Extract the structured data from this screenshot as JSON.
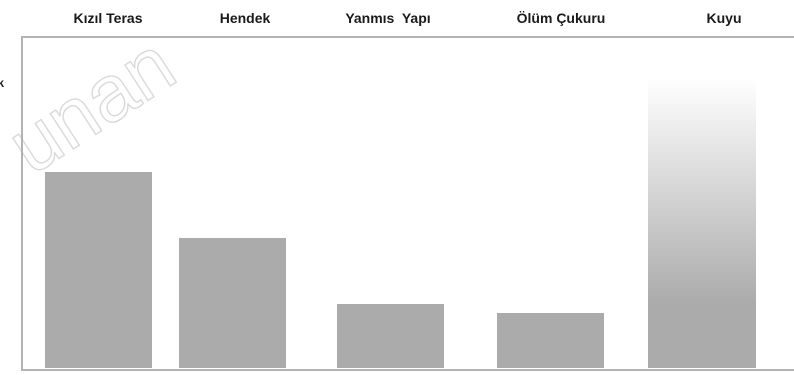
{
  "chart_data": {
    "type": "bar",
    "title": "",
    "xlabel": "",
    "ylabel": "ik",
    "categories": [
      "Kızıl Teras",
      "Hendek",
      "Yanmıs  Yapı",
      "Ölüm Çukuru",
      "Kuyu"
    ],
    "values": [
      196,
      130,
      64,
      55,
      290
    ],
    "ylim": [
      0,
      300
    ],
    "grid": false,
    "legend": "none",
    "colors": {
      "bar": "#ababab",
      "bar_gradient_top": "#ffffff",
      "frame": "#b3b3b3",
      "text": "#1a1a1a",
      "watermark": "#d9d9d9"
    }
  },
  "watermark": "unan"
}
